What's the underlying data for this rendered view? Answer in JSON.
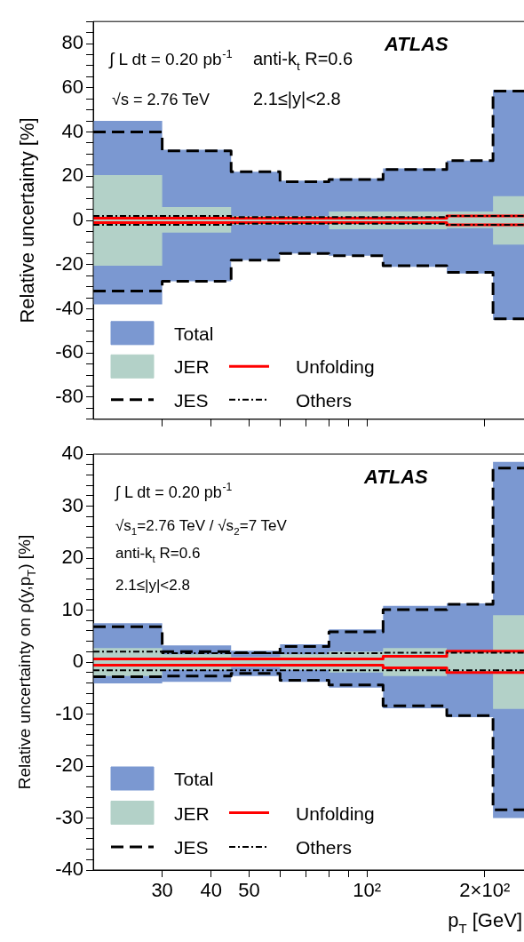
{
  "chart_data": [
    {
      "type": "step",
      "ylabel": "Relative uncertainty [%]",
      "log": "x",
      "x": [
        20,
        30,
        45,
        60,
        80,
        110,
        160,
        210
      ],
      "xlim": [
        20,
        260
      ],
      "xticks": [
        {
          "value": 30,
          "label": null
        },
        {
          "value": 40,
          "label": null
        },
        {
          "value": 50,
          "label": null
        },
        {
          "value": 60,
          "label": null
        },
        {
          "value": 70,
          "label": null
        },
        {
          "value": 80,
          "label": null
        },
        {
          "value": 90,
          "label": null
        },
        {
          "value": 100,
          "label": null
        },
        {
          "value": 200,
          "label": null
        }
      ],
      "ylim": [
        -90,
        90
      ],
      "yticks": [
        {
          "value": -90,
          "label": null
        },
        {
          "value": -85,
          "label": null
        },
        -80,
        {
          "value": -75,
          "label": null
        },
        {
          "value": -70,
          "label": null
        },
        {
          "value": -65,
          "label": null
        },
        -60,
        {
          "value": -55,
          "label": null
        },
        {
          "value": -50,
          "label": null
        },
        {
          "value": -45,
          "label": null
        },
        -40,
        {
          "value": -35,
          "label": null
        },
        {
          "value": -30,
          "label": null
        },
        {
          "value": -25,
          "label": null
        },
        -20,
        {
          "value": -15,
          "label": null
        },
        {
          "value": -10,
          "label": null
        },
        {
          "value": -5,
          "label": null
        },
        0,
        {
          "value": 5,
          "label": null
        },
        {
          "value": 10,
          "label": null
        },
        {
          "value": 15,
          "label": null
        },
        20,
        {
          "value": 25,
          "label": null
        },
        {
          "value": 30,
          "label": null
        },
        {
          "value": 35,
          "label": null
        },
        40,
        {
          "value": 45,
          "label": null
        },
        {
          "value": 50,
          "label": null
        },
        {
          "value": 55,
          "label": null
        },
        60,
        {
          "value": 65,
          "label": null
        },
        {
          "value": 70,
          "label": null
        },
        {
          "value": 75,
          "label": null
        },
        80,
        {
          "value": 85,
          "label": null
        },
        {
          "value": 90,
          "label": null
        }
      ],
      "tick_labels": "y",
      "legend": "bottom left",
      "annotations": [
        "ATLAS",
        "∫ L dt = 0.20 pb$^{-1}$",
        "anti-k$_{t}$ R=0.6",
        "√s = 2.76 TeV",
        "2.1≤|y|<2.8"
      ],
      "series": [
        {
          "name": "Total",
          "type": "area",
          "color": "#7b98d1",
          "values": [
            45,
            32,
            22,
            18,
            19,
            23.5,
            27,
            59
          ]
        },
        {
          "type": "area",
          "color": "#7b98d1",
          "values": [
            -38,
            -27.5,
            -18,
            -15,
            -16,
            -21,
            -24,
            -45
          ]
        },
        {
          "name": "JER",
          "type": "area",
          "color": "#b3d1c8",
          "values": [
            20.5,
            6,
            2,
            2,
            4,
            4,
            4,
            11
          ]
        },
        {
          "type": "area",
          "color": "#b3d1c8",
          "values": [
            -20.5,
            -5.5,
            -2,
            -2,
            -4,
            -4,
            -3.5,
            -11
          ]
        },
        {
          "name": "JES",
          "type": "step",
          "color": "#000000",
          "line_style": "dashed",
          "values": [
            40,
            31.5,
            22,
            17.5,
            18.5,
            23,
            27,
            58.5
          ]
        },
        {
          "type": "step",
          "color": "#000000",
          "line_style": "dashed",
          "values": [
            -32,
            -27.5,
            -18,
            -15,
            -16,
            -20.5,
            -23.5,
            -44.5
          ]
        },
        {
          "name": "Unfolding",
          "type": "step",
          "color": "#ff0000",
          "line_style": "solid",
          "values": [
            1,
            1,
            1,
            1,
            1,
            1,
            2,
            2
          ]
        },
        {
          "type": "step",
          "color": "#ff0000",
          "line_style": "solid",
          "values": [
            -1,
            -1,
            -1,
            -1,
            -1,
            -1,
            -2,
            -2
          ]
        },
        {
          "name": "Others",
          "type": "step",
          "color": "#000000",
          "line_style": "dashdot",
          "values": [
            2,
            2,
            1.5,
            1.5,
            1.5,
            1.5,
            2,
            2
          ]
        },
        {
          "type": "step",
          "color": "#000000",
          "line_style": "dashdot",
          "values": [
            -2,
            -2,
            -1.5,
            -1.5,
            -1.5,
            -1.5,
            -2,
            -2
          ]
        }
      ]
    },
    {
      "type": "step",
      "ylabel": "Relative uncertainty on ρ(y,p$_{T}$) [%]",
      "xlabel": "p$_{T}$ [GeV]",
      "log": "x",
      "x": [
        20,
        30,
        45,
        60,
        80,
        110,
        160,
        210
      ],
      "xlim": [
        20,
        260
      ],
      "xticks": [
        30,
        40,
        50,
        {
          "value": 60,
          "label": null
        },
        {
          "value": 70,
          "label": null
        },
        {
          "value": 80,
          "label": null
        },
        {
          "value": 90,
          "label": null
        },
        {
          "value": 100,
          "label": "10²"
        },
        {
          "value": 200,
          "label": "2×10²"
        }
      ],
      "ylim": [
        -40,
        40
      ],
      "yticks": [
        -40,
        {
          "value": -38,
          "label": null
        },
        {
          "value": -36,
          "label": null
        },
        {
          "value": -34,
          "label": null
        },
        {
          "value": -32,
          "label": null
        },
        -30,
        {
          "value": -28,
          "label": null
        },
        {
          "value": -26,
          "label": null
        },
        {
          "value": -24,
          "label": null
        },
        {
          "value": -22,
          "label": null
        },
        -20,
        {
          "value": -18,
          "label": null
        },
        {
          "value": -16,
          "label": null
        },
        {
          "value": -14,
          "label": null
        },
        {
          "value": -12,
          "label": null
        },
        -10,
        {
          "value": -8,
          "label": null
        },
        {
          "value": -6,
          "label": null
        },
        {
          "value": -4,
          "label": null
        },
        {
          "value": -2,
          "label": null
        },
        0,
        {
          "value": 2,
          "label": null
        },
        {
          "value": 4,
          "label": null
        },
        {
          "value": 6,
          "label": null
        },
        {
          "value": 8,
          "label": null
        },
        10,
        {
          "value": 12,
          "label": null
        },
        {
          "value": 14,
          "label": null
        },
        {
          "value": 16,
          "label": null
        },
        {
          "value": 18,
          "label": null
        },
        20,
        {
          "value": 22,
          "label": null
        },
        {
          "value": 24,
          "label": null
        },
        {
          "value": 26,
          "label": null
        },
        {
          "value": 28,
          "label": null
        },
        30,
        {
          "value": 32,
          "label": null
        },
        {
          "value": 34,
          "label": null
        },
        {
          "value": 36,
          "label": null
        },
        {
          "value": 38,
          "label": null
        },
        40
      ],
      "legend": "bottom left",
      "annotations": [
        "ATLAS",
        "∫ L dt = 0.20 pb$^{-1}$",
        "√s$_{1}$=2.76 TeV / √s$_{2}$=7 TeV",
        "anti-k$_{t}$ R=0.6",
        "2.1≤|y|<2.8"
      ],
      "series": [
        {
          "name": "Total",
          "type": "area",
          "color": "#7b98d1",
          "values": [
            7.5,
            3.2,
            2.2,
            3.4,
            6.3,
            10.8,
            11.3,
            38.5
          ]
        },
        {
          "type": "area",
          "color": "#7b98d1",
          "values": [
            -4.1,
            -3.8,
            -2.7,
            -3.8,
            -4.9,
            -8.9,
            -10.6,
            -30
          ]
        },
        {
          "name": "JER",
          "type": "area",
          "color": "#b3d1c8",
          "values": [
            2.7,
            1.5,
            1,
            1.5,
            2,
            2.7,
            2,
            9
          ]
        },
        {
          "type": "area",
          "color": "#b3d1c8",
          "values": [
            -2.7,
            -1.5,
            -1,
            -1.5,
            -2,
            -2.7,
            -2,
            -9
          ]
        },
        {
          "name": "JES",
          "type": "step",
          "color": "#000000",
          "line_style": "dashed",
          "values": [
            6.8,
            2,
            1.8,
            3,
            5.8,
            10.1,
            11.1,
            37.3
          ]
        },
        {
          "type": "step",
          "color": "#000000",
          "line_style": "dashed",
          "values": [
            -2.8,
            -2.7,
            -2.2,
            -3.5,
            -4.4,
            -8.4,
            -10.3,
            -28.4
          ]
        },
        {
          "name": "Unfolding",
          "type": "step",
          "color": "#ff0000",
          "line_style": "solid",
          "values": [
            0.6,
            0.6,
            0.6,
            0.6,
            0.6,
            1.1,
            2.1,
            2.1
          ]
        },
        {
          "type": "step",
          "color": "#ff0000",
          "line_style": "solid",
          "values": [
            -0.6,
            -0.6,
            -0.6,
            -0.6,
            -0.6,
            -1.1,
            -2,
            -2
          ]
        },
        {
          "name": "Others",
          "type": "step",
          "color": "#000000",
          "line_style": "dashdot",
          "values": [
            2,
            1.7,
            1.7,
            1.7,
            1.7,
            1.8,
            1.8,
            1.8
          ]
        },
        {
          "type": "step",
          "color": "#000000",
          "line_style": "dashdot",
          "values": [
            -1.6,
            -1.6,
            -1.6,
            -1.6,
            -1.6,
            -1.6,
            -1.6,
            -1.6
          ]
        }
      ]
    }
  ]
}
